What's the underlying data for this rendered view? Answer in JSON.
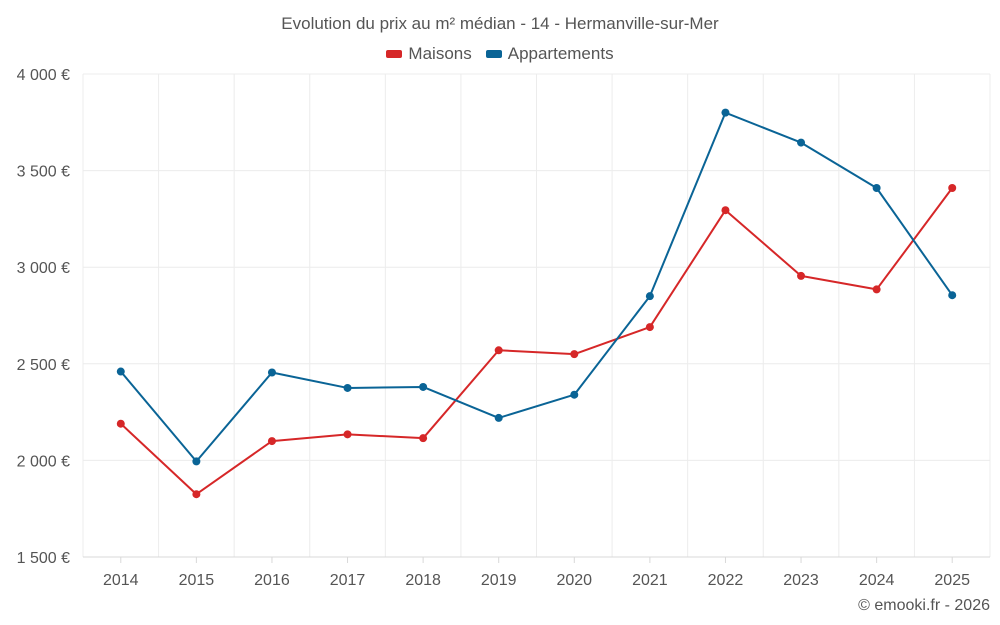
{
  "chart_data": {
    "type": "line",
    "title": "Evolution du prix au m² médian - 14 - Hermanville-sur-Mer",
    "categories": [
      "2014",
      "2015",
      "2016",
      "2017",
      "2018",
      "2019",
      "2020",
      "2021",
      "2022",
      "2023",
      "2024",
      "2025"
    ],
    "series": [
      {
        "name": "Maisons",
        "color": "#d62728",
        "values": [
          2190,
          1825,
          2100,
          2135,
          2115,
          2570,
          2550,
          2690,
          3295,
          2955,
          2885,
          3410
        ]
      },
      {
        "name": "Appartements",
        "color": "#0a6496",
        "values": [
          2460,
          1995,
          2455,
          2375,
          2380,
          2220,
          2340,
          2850,
          3800,
          3645,
          3410,
          2855
        ]
      }
    ],
    "ylim": [
      1500,
      4000
    ],
    "yticks": [
      1500,
      2000,
      2500,
      3000,
      3500,
      4000
    ],
    "ytick_labels": [
      "1 500 €",
      "2 000 €",
      "2 500 €",
      "3 000 €",
      "3 500 €",
      "4 000 €"
    ],
    "xlabel": "",
    "ylabel": "",
    "grid": true,
    "legend_position": "top-center"
  },
  "credit": "© emooki.fr - 2026"
}
